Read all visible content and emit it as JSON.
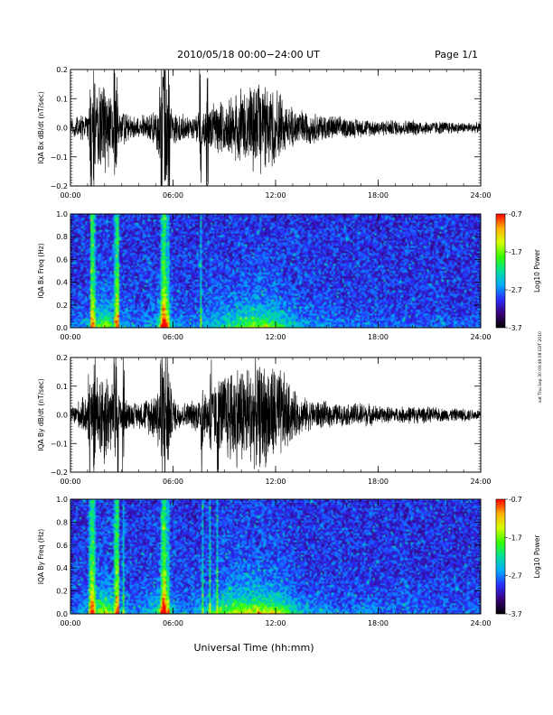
{
  "header": {
    "title": "2010/05/18  00:00−24:00 UT",
    "page": "Page 1/1"
  },
  "footer_xlabel": "Universal Time (hh:mm)",
  "side_note": "sat Thu Sep 30 09:48:08 EDT 2010",
  "colorbar": {
    "label": "Log10 Power",
    "ticks": [
      "-0.7",
      "-1.7",
      "-2.7",
      "-3.7"
    ],
    "values": [
      -0.7,
      -1.7,
      -2.7,
      -3.7
    ],
    "range": [
      -3.7,
      -0.7
    ],
    "colors": [
      "#000000",
      "#3a0077",
      "#2a2cff",
      "#00aaff",
      "#00e09a",
      "#35ff00",
      "#d6ff00",
      "#ffb000",
      "#ff0000"
    ]
  },
  "chart_data": [
    {
      "type": "line",
      "ylabel": "IQA Bx dB/dt (nT/sec)",
      "xticks": [
        "00:00",
        "06:00",
        "12:00",
        "18:00",
        "24:00"
      ],
      "xlim": [
        0,
        24
      ],
      "ylim": [
        -0.2,
        0.2
      ],
      "yticks": [
        "0.2",
        "0.1",
        "0.0",
        "−0.1",
        "−0.2"
      ],
      "ytick_values": [
        0.2,
        0.1,
        0.0,
        -0.1,
        -0.2
      ],
      "envelope": {
        "hours": [
          0,
          1,
          1.5,
          2,
          2.5,
          3,
          3.5,
          4,
          4.5,
          5,
          5.3,
          5.5,
          5.8,
          6,
          6.5,
          7,
          7.5,
          8,
          8.5,
          9,
          9.5,
          10,
          10.5,
          11,
          11.5,
          12,
          12.5,
          13,
          13.5,
          14,
          15,
          16,
          17,
          18,
          19,
          20,
          21,
          22,
          23,
          24
        ],
        "amplitude": [
          0.03,
          0.06,
          0.12,
          0.2,
          0.1,
          0.07,
          0.05,
          0.04,
          0.05,
          0.07,
          0.2,
          0.2,
          0.12,
          0.06,
          0.05,
          0.04,
          0.06,
          0.08,
          0.09,
          0.1,
          0.12,
          0.15,
          0.17,
          0.18,
          0.16,
          0.15,
          0.1,
          0.08,
          0.07,
          0.06,
          0.05,
          0.04,
          0.035,
          0.03,
          0.03,
          0.03,
          0.025,
          0.025,
          0.02,
          0.02
        ]
      },
      "spikes_hours": [
        1.2,
        1.4,
        2.6,
        2.7,
        5.3,
        5.4,
        5.5,
        5.6,
        5.75,
        7.6,
        8.0
      ]
    },
    {
      "type": "heatmap",
      "ylabel": "IQA Bx Freq (Hz)",
      "xticks": [
        "00:00",
        "06:00",
        "12:00",
        "18:00",
        "24:00"
      ],
      "xlim": [
        0,
        24
      ],
      "ylim": [
        0.0,
        1.0
      ],
      "yticks": [
        "1.0",
        "0.8",
        "0.6",
        "0.4",
        "0.2",
        "0.0"
      ],
      "ytick_values": [
        1.0,
        0.8,
        0.6,
        0.4,
        0.2,
        0.0
      ],
      "zlim": [
        -3.7,
        -0.7
      ],
      "bright_lines_hours": [
        1.3,
        2.7,
        5.45
      ]
    },
    {
      "type": "line",
      "ylabel": "IQA By dB/dt (nT/sec)",
      "xticks": [
        "00:00",
        "06:00",
        "12:00",
        "18:00",
        "24:00"
      ],
      "xlim": [
        0,
        24
      ],
      "ylim": [
        -0.2,
        0.2
      ],
      "yticks": [
        "0.2",
        "0.1",
        "0.0",
        "−0.1",
        "−0.2"
      ],
      "ytick_values": [
        0.2,
        0.1,
        0.0,
        -0.1,
        -0.2
      ],
      "envelope": {
        "hours": [
          0,
          1,
          1.5,
          2,
          2.5,
          3,
          3.5,
          4,
          4.5,
          5,
          5.3,
          5.5,
          5.8,
          6,
          6.5,
          7,
          7.5,
          8,
          8.5,
          9,
          9.5,
          10,
          10.5,
          11,
          11.5,
          12,
          12.5,
          13,
          13.5,
          14,
          15,
          16,
          17,
          18,
          19,
          20,
          21,
          22,
          23,
          24
        ],
        "amplitude": [
          0.03,
          0.08,
          0.15,
          0.2,
          0.12,
          0.08,
          0.05,
          0.05,
          0.07,
          0.1,
          0.2,
          0.2,
          0.14,
          0.07,
          0.05,
          0.05,
          0.07,
          0.1,
          0.13,
          0.17,
          0.2,
          0.2,
          0.2,
          0.2,
          0.2,
          0.2,
          0.16,
          0.1,
          0.07,
          0.06,
          0.05,
          0.04,
          0.05,
          0.035,
          0.03,
          0.035,
          0.03,
          0.025,
          0.025,
          0.02
        ]
      },
      "spikes_hours": [
        1.1,
        1.4,
        2.6,
        2.75,
        3.1,
        5.3,
        5.4,
        5.5,
        5.6,
        5.7,
        7.7,
        8.2,
        8.6
      ]
    },
    {
      "type": "heatmap",
      "ylabel": "IQA By Freq (Hz)",
      "xticks": [
        "00:00",
        "06:00",
        "12:00",
        "18:00",
        "24:00"
      ],
      "xlim": [
        0,
        24
      ],
      "ylim": [
        0.0,
        1.0
      ],
      "yticks": [
        "1.0",
        "0.8",
        "0.6",
        "0.4",
        "0.2",
        "0.0"
      ],
      "ytick_values": [
        1.0,
        0.8,
        0.6,
        0.4,
        0.2,
        0.0
      ],
      "zlim": [
        -3.7,
        -0.7
      ],
      "bright_lines_hours": [
        1.3,
        2.7,
        5.45
      ]
    }
  ]
}
